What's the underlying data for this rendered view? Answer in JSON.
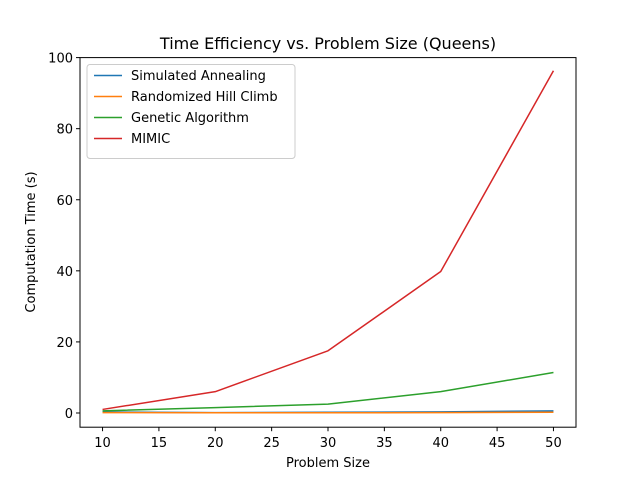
{
  "chart_data": {
    "type": "line",
    "title": "Time Efficiency vs. Problem Size (Queens)",
    "xlabel": "Problem Size",
    "ylabel": "Computation Time (s)",
    "x": [
      10,
      20,
      30,
      40,
      50
    ],
    "xlim": [
      8,
      52
    ],
    "ylim": [
      -4,
      100
    ],
    "xticks": [
      10,
      15,
      20,
      25,
      30,
      35,
      40,
      45,
      50
    ],
    "yticks": [
      0,
      20,
      40,
      60,
      80,
      100
    ],
    "legend_position": "upper-left",
    "grid": false,
    "series": [
      {
        "name": "Simulated Annealing",
        "color": "#1f77b4",
        "values": [
          0.3,
          0.1,
          0.2,
          0.3,
          0.6
        ]
      },
      {
        "name": "Randomized Hill Climb",
        "color": "#ff7f0e",
        "values": [
          0.1,
          0.05,
          0.05,
          0.1,
          0.2
        ]
      },
      {
        "name": "Genetic Algorithm",
        "color": "#2ca02c",
        "values": [
          0.6,
          1.5,
          2.5,
          6.0,
          11.4
        ]
      },
      {
        "name": "MIMIC",
        "color": "#d62728",
        "values": [
          1.0,
          6.0,
          17.5,
          39.8,
          96.3
        ]
      }
    ]
  }
}
